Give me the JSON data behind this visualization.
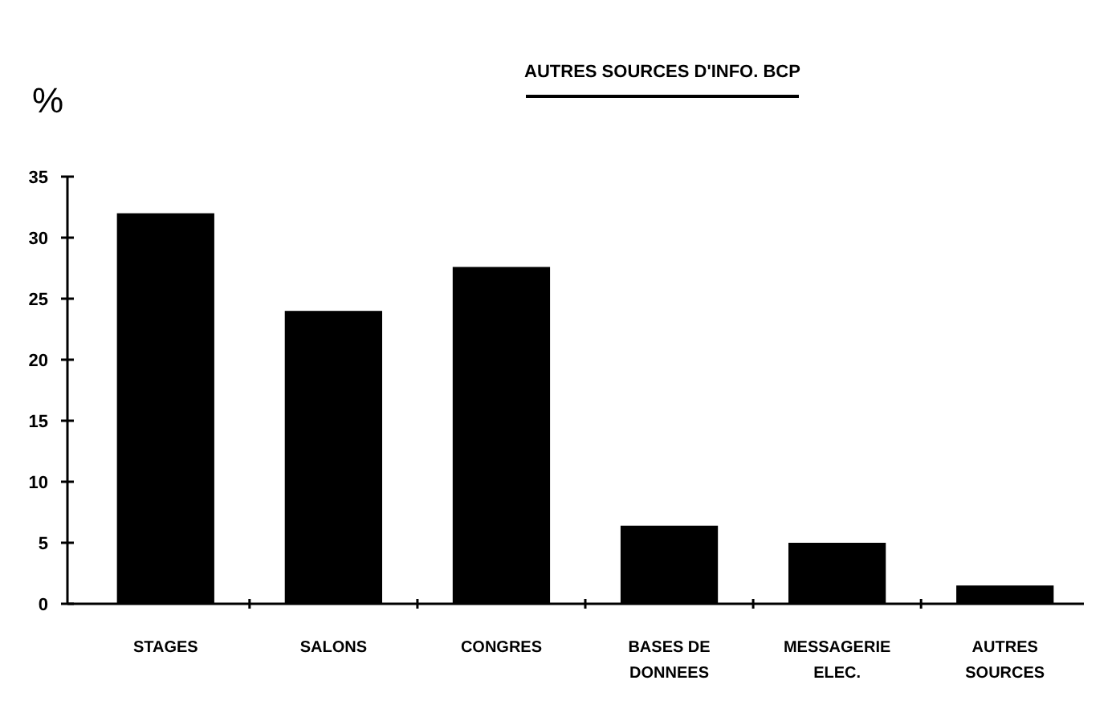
{
  "chart_data": {
    "type": "bar",
    "title": "AUTRES SOURCES D'INFO. BCP",
    "ylabel": "%",
    "categories": [
      "STAGES",
      "SALONS",
      "CONGRES",
      "BASES DE DONNEES",
      "MESSAGERIE ELEC.",
      "AUTRES SOURCES"
    ],
    "values": [
      32,
      24,
      27.6,
      6.4,
      5,
      1.5
    ],
    "color": "#000000",
    "ylim": [
      0,
      35
    ],
    "yticks": [
      0,
      5,
      10,
      15,
      20,
      25,
      30,
      35
    ],
    "grid": false
  }
}
